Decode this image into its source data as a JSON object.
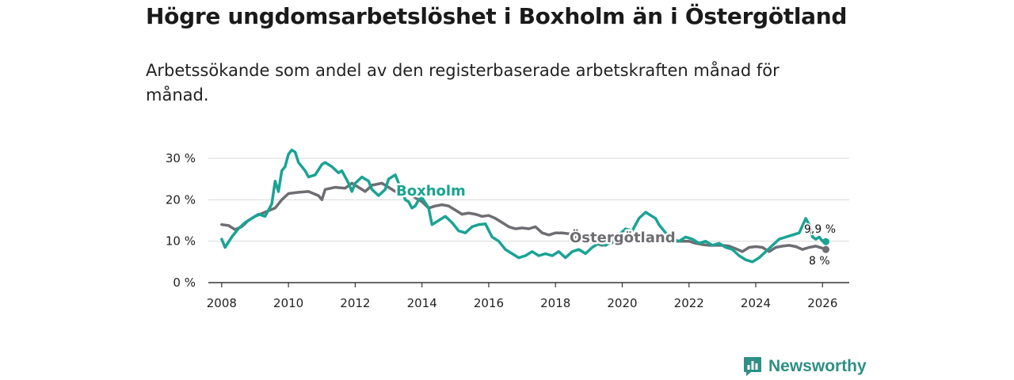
{
  "chart_data": {
    "type": "line",
    "title": "Högre ungdomsarbetslöshet i Boxholm än i Östergötland",
    "subtitle": "Arbetssökande som andel av den registerbaserade arbetskraften månad för månad.",
    "xlabel": "",
    "ylabel": "",
    "xlim": [
      2007.6,
      2026.8
    ],
    "ylim": [
      0,
      30
    ],
    "y_ticks": [
      0,
      10,
      20,
      30
    ],
    "y_tick_labels": [
      "0 %",
      "10 %",
      "20 %",
      "30 %"
    ],
    "x_ticks": [
      2008,
      2010,
      2012,
      2014,
      2016,
      2018,
      2020,
      2022,
      2024,
      2026
    ],
    "x_tick_labels": [
      "2008",
      "2010",
      "2012",
      "2014",
      "2016",
      "2018",
      "2020",
      "2022",
      "2024",
      "2026"
    ],
    "grid": true,
    "series": [
      {
        "name": "Östergötland",
        "color": "#6d6d72",
        "end_label": "8 %",
        "points": [
          [
            2008.0,
            14.0
          ],
          [
            2008.2,
            13.8
          ],
          [
            2008.4,
            12.8
          ],
          [
            2008.6,
            13.5
          ],
          [
            2008.8,
            15.0
          ],
          [
            2009.0,
            16.0
          ],
          [
            2009.3,
            17.0
          ],
          [
            2009.6,
            18.0
          ],
          [
            2009.8,
            20.0
          ],
          [
            2010.0,
            21.5
          ],
          [
            2010.3,
            21.8
          ],
          [
            2010.6,
            22.0
          ],
          [
            2010.9,
            21.0
          ],
          [
            2011.0,
            20.0
          ],
          [
            2011.1,
            22.5
          ],
          [
            2011.4,
            23.0
          ],
          [
            2011.7,
            22.8
          ],
          [
            2011.9,
            24.0
          ],
          [
            2012.1,
            23.0
          ],
          [
            2012.3,
            22.0
          ],
          [
            2012.5,
            23.5
          ],
          [
            2012.8,
            24.0
          ],
          [
            2013.0,
            23.0
          ],
          [
            2013.2,
            22.0
          ],
          [
            2013.4,
            22.5
          ],
          [
            2013.6,
            21.5
          ],
          [
            2013.8,
            20.5
          ],
          [
            2014.0,
            19.5
          ],
          [
            2014.2,
            18.0
          ],
          [
            2014.4,
            18.5
          ],
          [
            2014.6,
            18.8
          ],
          [
            2014.8,
            18.5
          ],
          [
            2015.0,
            17.5
          ],
          [
            2015.2,
            16.5
          ],
          [
            2015.4,
            16.8
          ],
          [
            2015.6,
            16.5
          ],
          [
            2015.8,
            16.0
          ],
          [
            2016.0,
            16.2
          ],
          [
            2016.2,
            15.5
          ],
          [
            2016.4,
            14.5
          ],
          [
            2016.6,
            13.5
          ],
          [
            2016.8,
            13.0
          ],
          [
            2017.0,
            13.2
          ],
          [
            2017.2,
            13.0
          ],
          [
            2017.4,
            13.5
          ],
          [
            2017.6,
            12.0
          ],
          [
            2017.8,
            11.5
          ],
          [
            2018.0,
            12.0
          ],
          [
            2018.2,
            12.0
          ],
          [
            2018.4,
            11.8
          ],
          [
            2018.6,
            11.0
          ],
          [
            2018.8,
            10.5
          ],
          [
            2019.0,
            10.0
          ],
          [
            2019.2,
            9.5
          ],
          [
            2019.4,
            9.0
          ],
          [
            2019.6,
            9.5
          ],
          [
            2019.8,
            9.8
          ],
          [
            2020.0,
            10.5
          ],
          [
            2020.2,
            11.5
          ],
          [
            2020.4,
            12.0
          ],
          [
            2020.6,
            12.0
          ],
          [
            2020.8,
            11.5
          ],
          [
            2021.0,
            11.0
          ],
          [
            2021.2,
            10.5
          ],
          [
            2021.4,
            10.0
          ],
          [
            2021.6,
            10.0
          ],
          [
            2021.8,
            10.0
          ],
          [
            2022.0,
            10.0
          ],
          [
            2022.2,
            9.5
          ],
          [
            2022.4,
            9.2
          ],
          [
            2022.6,
            9.0
          ],
          [
            2022.8,
            9.0
          ],
          [
            2023.0,
            9.0
          ],
          [
            2023.2,
            8.8
          ],
          [
            2023.4,
            8.2
          ],
          [
            2023.6,
            7.5
          ],
          [
            2023.8,
            8.5
          ],
          [
            2024.0,
            8.7
          ],
          [
            2024.2,
            8.5
          ],
          [
            2024.4,
            7.5
          ],
          [
            2024.6,
            8.5
          ],
          [
            2024.8,
            8.8
          ],
          [
            2025.0,
            9.0
          ],
          [
            2025.2,
            8.7
          ],
          [
            2025.4,
            8.0
          ],
          [
            2025.6,
            8.5
          ],
          [
            2025.8,
            8.8
          ],
          [
            2026.0,
            8.3
          ],
          [
            2026.1,
            8.0
          ]
        ]
      },
      {
        "name": "Boxholm",
        "color": "#1aa394",
        "end_label": "9,9 %",
        "points": [
          [
            2008.0,
            10.5
          ],
          [
            2008.1,
            8.5
          ],
          [
            2008.3,
            11.0
          ],
          [
            2008.5,
            13.0
          ],
          [
            2008.7,
            14.5
          ],
          [
            2008.9,
            15.5
          ],
          [
            2009.1,
            16.5
          ],
          [
            2009.3,
            16.0
          ],
          [
            2009.5,
            19.0
          ],
          [
            2009.6,
            24.5
          ],
          [
            2009.7,
            22.0
          ],
          [
            2009.8,
            27.0
          ],
          [
            2009.9,
            28.0
          ],
          [
            2010.0,
            31.0
          ],
          [
            2010.1,
            32.0
          ],
          [
            2010.2,
            31.5
          ],
          [
            2010.3,
            29.0
          ],
          [
            2010.5,
            27.0
          ],
          [
            2010.6,
            25.5
          ],
          [
            2010.8,
            26.0
          ],
          [
            2011.0,
            28.5
          ],
          [
            2011.1,
            29.0
          ],
          [
            2011.3,
            28.0
          ],
          [
            2011.5,
            26.5
          ],
          [
            2011.6,
            27.0
          ],
          [
            2011.8,
            24.0
          ],
          [
            2011.9,
            22.0
          ],
          [
            2012.0,
            24.0
          ],
          [
            2012.2,
            25.5
          ],
          [
            2012.4,
            24.5
          ],
          [
            2012.5,
            22.5
          ],
          [
            2012.7,
            21.0
          ],
          [
            2012.9,
            22.5
          ],
          [
            2013.0,
            25.0
          ],
          [
            2013.2,
            26.0
          ],
          [
            2013.4,
            22.0
          ],
          [
            2013.5,
            20.0
          ],
          [
            2013.6,
            19.5
          ],
          [
            2013.7,
            18.0
          ],
          [
            2013.8,
            18.5
          ],
          [
            2013.9,
            20.0
          ],
          [
            2014.0,
            20.5
          ],
          [
            2014.2,
            18.0
          ],
          [
            2014.3,
            14.0
          ],
          [
            2014.5,
            15.0
          ],
          [
            2014.7,
            16.0
          ],
          [
            2014.9,
            14.5
          ],
          [
            2015.1,
            12.5
          ],
          [
            2015.3,
            12.0
          ],
          [
            2015.5,
            13.5
          ],
          [
            2015.7,
            14.0
          ],
          [
            2015.9,
            14.2
          ],
          [
            2016.1,
            11.0
          ],
          [
            2016.3,
            10.0
          ],
          [
            2016.5,
            8.0
          ],
          [
            2016.7,
            7.0
          ],
          [
            2016.9,
            6.0
          ],
          [
            2017.1,
            6.5
          ],
          [
            2017.3,
            7.5
          ],
          [
            2017.5,
            6.5
          ],
          [
            2017.7,
            7.0
          ],
          [
            2017.9,
            6.5
          ],
          [
            2018.1,
            7.5
          ],
          [
            2018.3,
            6.0
          ],
          [
            2018.5,
            7.5
          ],
          [
            2018.7,
            8.0
          ],
          [
            2018.9,
            7.0
          ],
          [
            2019.1,
            8.5
          ],
          [
            2019.3,
            9.5
          ],
          [
            2019.5,
            9.0
          ],
          [
            2019.7,
            10.0
          ],
          [
            2019.9,
            11.5
          ],
          [
            2020.1,
            13.0
          ],
          [
            2020.3,
            12.5
          ],
          [
            2020.5,
            15.5
          ],
          [
            2020.7,
            17.0
          ],
          [
            2020.9,
            16.0
          ],
          [
            2021.0,
            15.5
          ],
          [
            2021.1,
            14.0
          ],
          [
            2021.3,
            12.0
          ],
          [
            2021.5,
            10.5
          ],
          [
            2021.7,
            10.0
          ],
          [
            2021.9,
            11.0
          ],
          [
            2022.1,
            10.5
          ],
          [
            2022.3,
            9.5
          ],
          [
            2022.5,
            10.0
          ],
          [
            2022.7,
            9.0
          ],
          [
            2022.9,
            9.5
          ],
          [
            2023.1,
            8.5
          ],
          [
            2023.3,
            8.0
          ],
          [
            2023.5,
            6.5
          ],
          [
            2023.7,
            5.5
          ],
          [
            2023.9,
            5.0
          ],
          [
            2024.1,
            6.0
          ],
          [
            2024.3,
            7.5
          ],
          [
            2024.5,
            9.0
          ],
          [
            2024.7,
            10.5
          ],
          [
            2024.9,
            11.0
          ],
          [
            2025.1,
            11.5
          ],
          [
            2025.3,
            12.0
          ],
          [
            2025.5,
            15.5
          ],
          [
            2025.6,
            14.0
          ],
          [
            2025.7,
            11.0
          ],
          [
            2025.8,
            10.5
          ],
          [
            2025.9,
            11.0
          ],
          [
            2026.0,
            10.0
          ],
          [
            2026.1,
            9.9
          ]
        ]
      }
    ]
  },
  "branding": {
    "name": "Newsworthy",
    "color": "#2e8f86"
  }
}
